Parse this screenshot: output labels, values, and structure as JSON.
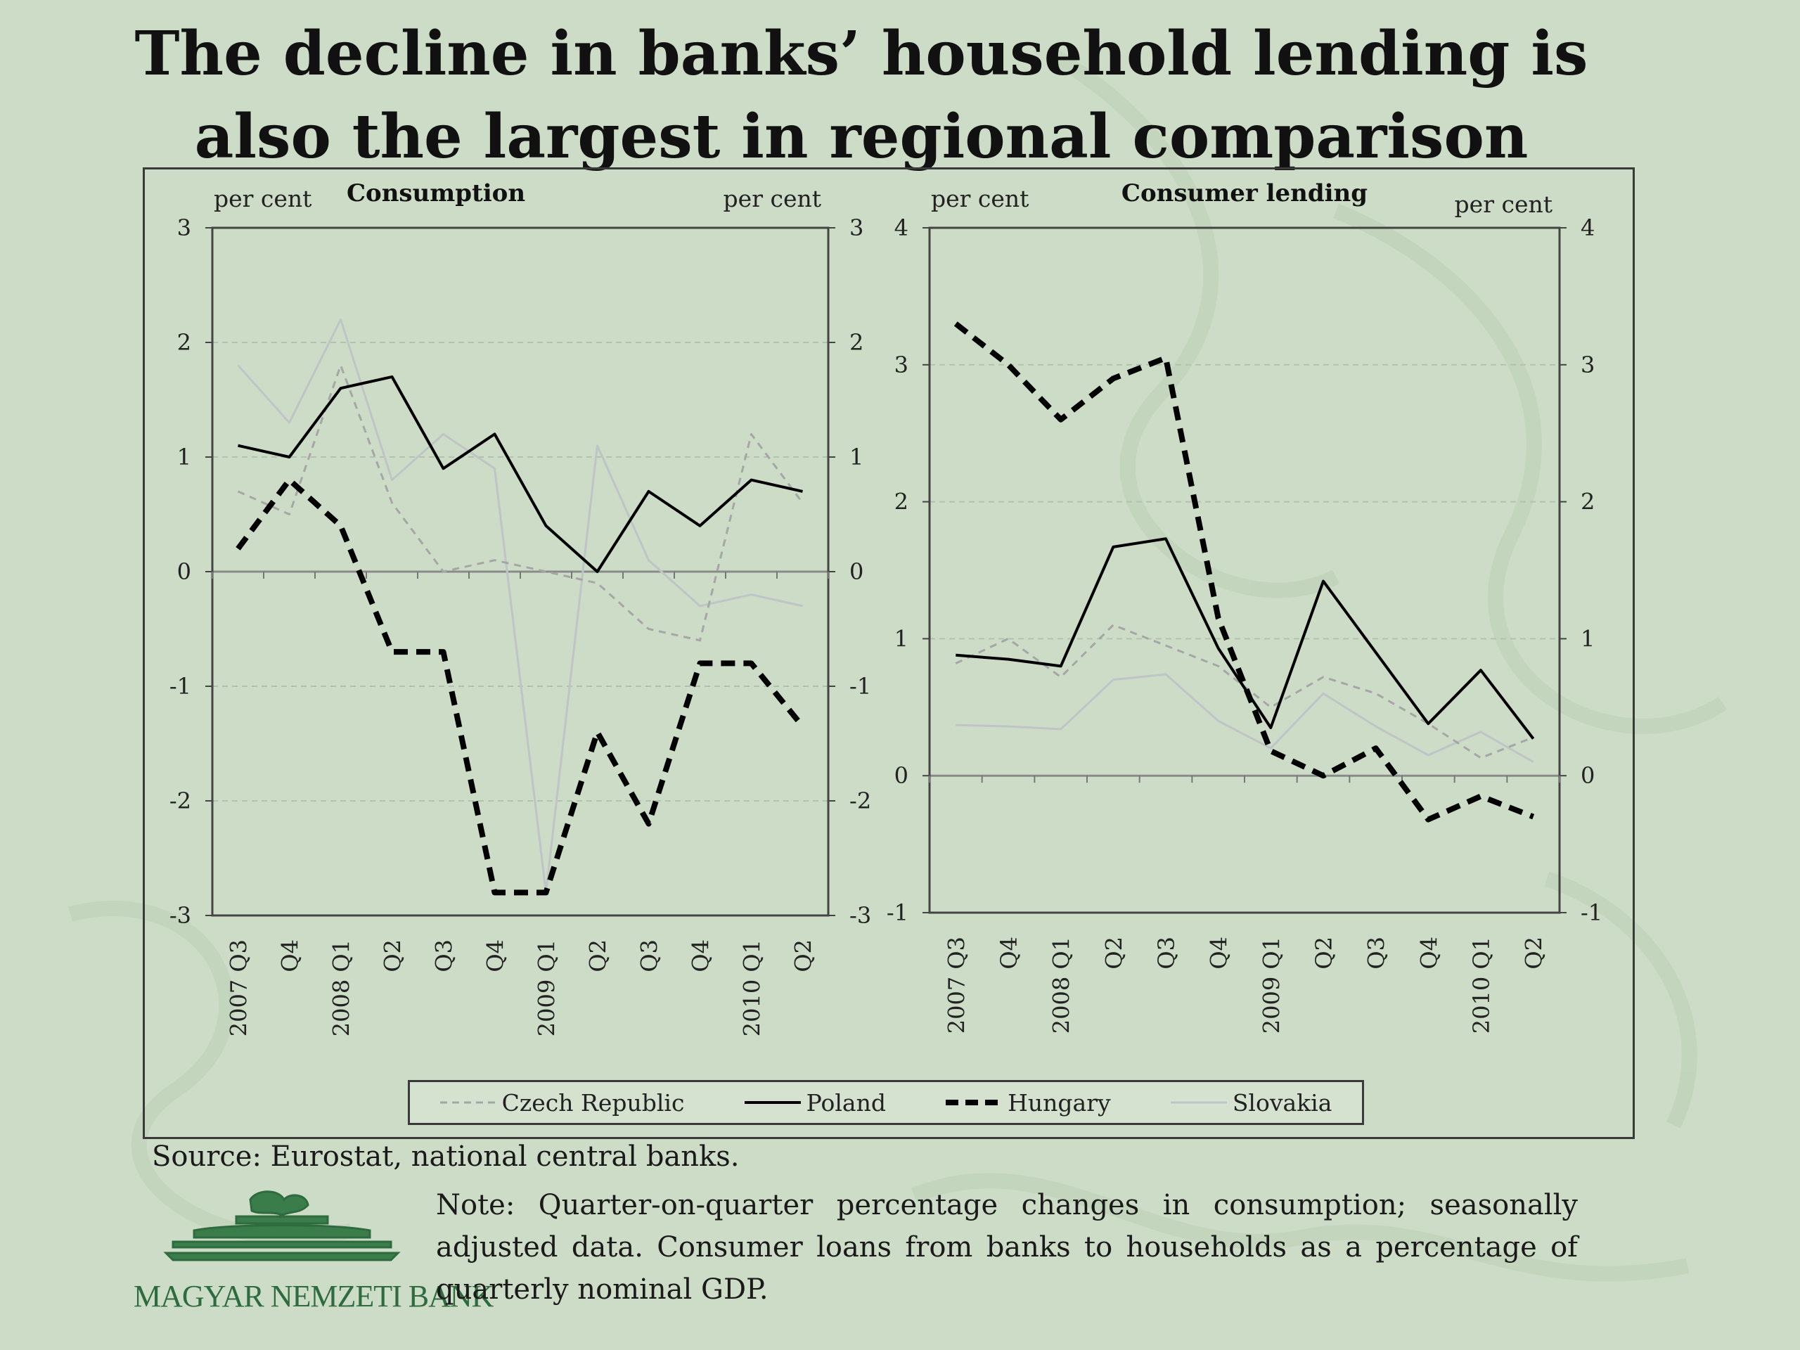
{
  "title": "The decline in banks’ household lending is also the largest in regional comparison",
  "source": "Source: Eurostat, national central banks.",
  "note": "Note: Quarter-on-quarter percentage changes in consumption; seasonally adjusted data. Consumer loans from banks to households as a percentage of quarterly nominal GDP.",
  "logo_text": "MAGYAR NEMZETI BANK",
  "legend": [
    {
      "name": "Czech Republic",
      "style": "dashed-thin",
      "color": "#a6a6a6"
    },
    {
      "name": "Poland",
      "style": "solid",
      "color": "#000000"
    },
    {
      "name": "Hungary",
      "style": "dashed-thick",
      "color": "#000000"
    },
    {
      "name": "Slovakia",
      "style": "solid-light",
      "color": "#bfc4c6"
    }
  ],
  "chart_data": [
    {
      "type": "line",
      "title": "Consumption",
      "ylabel_left": "per cent",
      "ylabel_right": "per cent",
      "ylim": [
        -3,
        3
      ],
      "yticks": [
        3,
        2,
        1,
        0,
        -1,
        -2,
        -3
      ],
      "grid": true,
      "categories": [
        "2007 Q3",
        "Q4",
        "2008 Q1",
        "Q2",
        "Q3",
        "Q4",
        "2009 Q1",
        "Q2",
        "Q3",
        "Q4",
        "2010 Q1",
        "Q2"
      ],
      "series": [
        {
          "name": "Czech Republic",
          "values": [
            0.7,
            0.5,
            1.8,
            0.6,
            0.0,
            0.1,
            0.0,
            -0.1,
            -0.5,
            -0.6,
            1.2,
            0.6
          ]
        },
        {
          "name": "Poland",
          "values": [
            1.1,
            1.0,
            1.6,
            1.7,
            0.9,
            1.2,
            0.4,
            0.0,
            0.7,
            0.4,
            0.8,
            0.7
          ]
        },
        {
          "name": "Hungary",
          "values": [
            0.2,
            0.8,
            0.4,
            -0.7,
            -0.7,
            -2.8,
            -2.8,
            -1.4,
            -2.2,
            -0.8,
            -0.8,
            -1.35
          ]
        },
        {
          "name": "Slovakia",
          "values": [
            1.8,
            1.3,
            2.2,
            0.8,
            1.2,
            0.9,
            -2.8,
            1.1,
            0.1,
            -0.3,
            -0.2,
            -0.3
          ]
        }
      ]
    },
    {
      "type": "line",
      "title": "Consumer lending",
      "ylabel_left": "per cent",
      "ylabel_right": "per cent",
      "ylim": [
        -1,
        4
      ],
      "yticks": [
        4,
        3,
        2,
        1,
        0,
        -1
      ],
      "grid": true,
      "categories": [
        "2007 Q3",
        "Q4",
        "2008 Q1",
        "Q2",
        "Q3",
        "Q4",
        "2009 Q1",
        "Q2",
        "Q3",
        "Q4",
        "2010 Q1",
        "Q2"
      ],
      "series": [
        {
          "name": "Czech Republic",
          "values": [
            0.82,
            1.0,
            0.72,
            1.1,
            0.95,
            0.8,
            0.5,
            0.72,
            0.6,
            0.38,
            0.13,
            0.28
          ]
        },
        {
          "name": "Poland",
          "values": [
            0.88,
            0.85,
            0.8,
            1.67,
            1.73,
            0.93,
            0.35,
            1.42,
            0.9,
            0.38,
            0.77,
            0.27
          ]
        },
        {
          "name": "Hungary",
          "values": [
            3.3,
            3.0,
            2.6,
            2.9,
            3.05,
            1.15,
            0.18,
            0.0,
            0.2,
            -0.32,
            -0.15,
            -0.3
          ]
        },
        {
          "name": "Slovakia",
          "values": [
            0.37,
            0.36,
            0.34,
            0.7,
            0.74,
            0.4,
            0.2,
            0.6,
            0.36,
            0.15,
            0.32,
            0.1
          ]
        }
      ]
    }
  ]
}
